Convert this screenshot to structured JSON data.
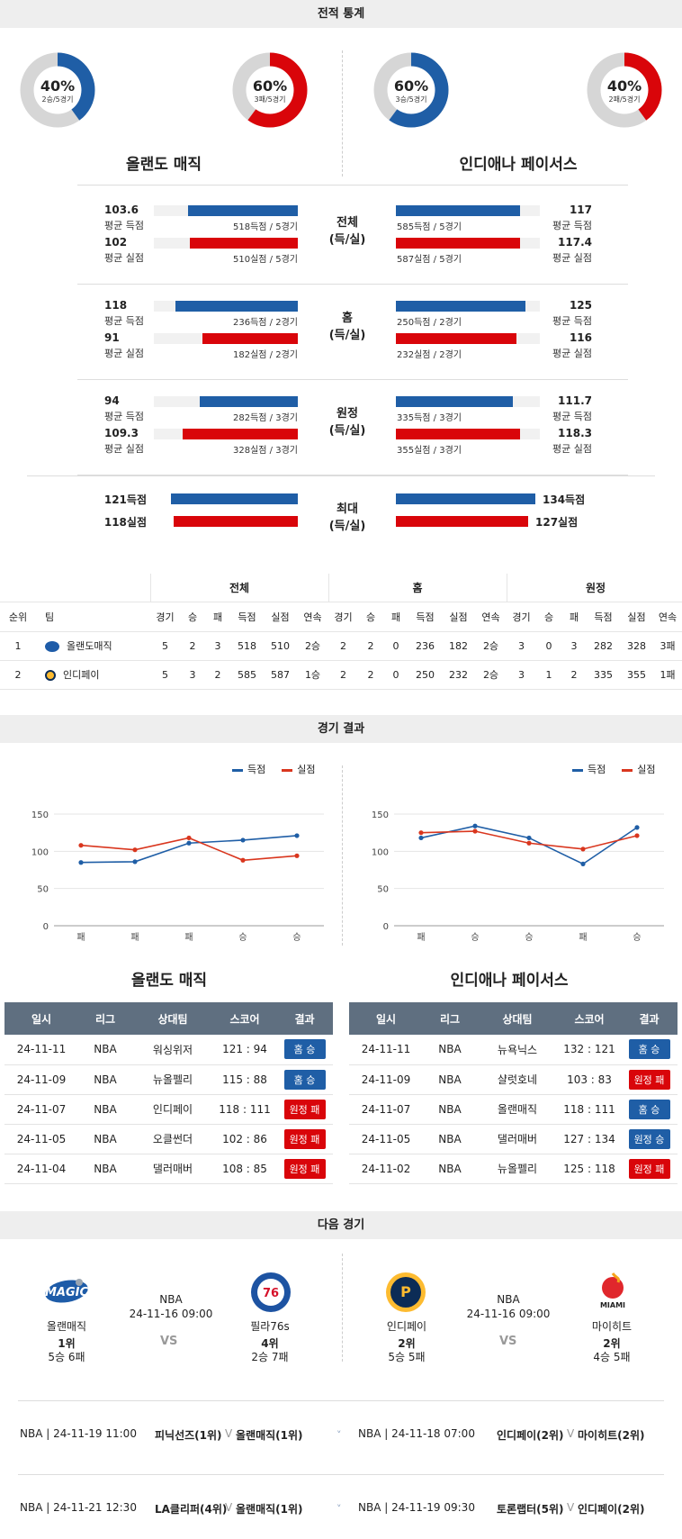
{
  "sections": {
    "stats_title": "전적 통계",
    "results_title": "경기 결과",
    "next_title": "다음 경기"
  },
  "donuts": [
    {
      "pct": "40%",
      "sub": "2승/5경기",
      "fraction": 0.4,
      "color": "#1f5ea6"
    },
    {
      "pct": "60%",
      "sub": "3패/5경기",
      "fraction": 0.6,
      "color": "#d9050a"
    },
    {
      "pct": "60%",
      "sub": "3승/5경기",
      "fraction": 0.6,
      "color": "#1f5ea6"
    },
    {
      "pct": "40%",
      "sub": "2패/5경기",
      "fraction": 0.4,
      "color": "#d9050a"
    }
  ],
  "teams": {
    "left": "올랜도 매직",
    "right": "인디애나 페이서스"
  },
  "stat_groups": [
    {
      "mid": [
        "전체",
        "(득/실)"
      ],
      "left": [
        {
          "val": "103.6",
          "lbl": "평균 득점",
          "note": "518득점 / 5경기",
          "fill": 0.76
        },
        {
          "val": "102",
          "lbl": "평균 실점",
          "note": "510실점 / 5경기",
          "fill": 0.75
        }
      ],
      "right": [
        {
          "val": "117",
          "lbl": "평균 득점",
          "note": "585득점 / 5경기",
          "fill": 0.86
        },
        {
          "val": "117.4",
          "lbl": "평균 실점",
          "note": "587실점 / 5경기",
          "fill": 0.86
        }
      ]
    },
    {
      "mid": [
        "홈",
        "(득/실)"
      ],
      "left": [
        {
          "val": "118",
          "lbl": "평균 득점",
          "note": "236득점 / 2경기",
          "fill": 0.85
        },
        {
          "val": "91",
          "lbl": "평균 실점",
          "note": "182실점 / 2경기",
          "fill": 0.66
        }
      ],
      "right": [
        {
          "val": "125",
          "lbl": "평균 득점",
          "note": "250득점 / 2경기",
          "fill": 0.9
        },
        {
          "val": "116",
          "lbl": "평균 실점",
          "note": "232실점 / 2경기",
          "fill": 0.84
        }
      ]
    },
    {
      "mid": [
        "원정",
        "(득/실)"
      ],
      "left": [
        {
          "val": "94",
          "lbl": "평균 득점",
          "note": "282득점 / 3경기",
          "fill": 0.68
        },
        {
          "val": "109.3",
          "lbl": "평균 실점",
          "note": "328실점 / 3경기",
          "fill": 0.8
        }
      ],
      "right": [
        {
          "val": "111.7",
          "lbl": "평균 득점",
          "note": "335득점 / 3경기",
          "fill": 0.81
        },
        {
          "val": "118.3",
          "lbl": "평균 실점",
          "note": "355실점 / 3경기",
          "fill": 0.86
        }
      ]
    }
  ],
  "max_group": {
    "mid": [
      "최대",
      "(득/실)"
    ],
    "left": [
      {
        "val": "121득점",
        "fill": 0.88
      },
      {
        "val": "118실점",
        "fill": 0.86
      }
    ],
    "right": [
      {
        "val": "134득점",
        "fill": 0.97
      },
      {
        "val": "127실점",
        "fill": 0.92
      }
    ]
  },
  "standings": {
    "groups": [
      "전체",
      "홈",
      "원정"
    ],
    "headers": [
      "순위",
      "팀",
      "경기",
      "승",
      "패",
      "득점",
      "실점",
      "연속",
      "경기",
      "승",
      "패",
      "득점",
      "실점",
      "연속",
      "경기",
      "승",
      "패",
      "득점",
      "실점",
      "연속"
    ],
    "rows": [
      {
        "icon": "magic-logo-icon",
        "cells": [
          "1",
          "올랜도매직",
          "5",
          "2",
          "3",
          "518",
          "510",
          "2승",
          "2",
          "2",
          "0",
          "236",
          "182",
          "2승",
          "3",
          "0",
          "3",
          "282",
          "328",
          "3패"
        ]
      },
      {
        "icon": "pacers-logo-icon",
        "cells": [
          "2",
          "인디페이",
          "5",
          "3",
          "2",
          "585",
          "587",
          "1승",
          "2",
          "2",
          "0",
          "250",
          "232",
          "2승",
          "3",
          "1",
          "2",
          "335",
          "355",
          "1패"
        ]
      }
    ]
  },
  "legend": {
    "scored": "득점",
    "allowed": "실점",
    "scored_color": "#1f5ea6",
    "allowed_color": "#d9361e"
  },
  "chart_data": [
    {
      "type": "line",
      "categories": [
        "패",
        "패",
        "패",
        "승",
        "승"
      ],
      "series": [
        {
          "name": "득점",
          "values": [
            85,
            86,
            111,
            115,
            121
          ]
        },
        {
          "name": "실점",
          "values": [
            108,
            102,
            118,
            88,
            94
          ]
        }
      ],
      "yticks": [
        "150",
        "100",
        "50",
        "0"
      ],
      "ylim": [
        0,
        150
      ],
      "grid": true,
      "legend": "top-right"
    },
    {
      "type": "line",
      "categories": [
        "패",
        "승",
        "승",
        "패",
        "승"
      ],
      "series": [
        {
          "name": "득점",
          "values": [
            118,
            134,
            118,
            83,
            132
          ]
        },
        {
          "name": "실점",
          "values": [
            125,
            127,
            111,
            103,
            121
          ]
        }
      ],
      "yticks": [
        "150",
        "100",
        "50",
        "0"
      ],
      "ylim": [
        0,
        150
      ],
      "grid": true,
      "legend": "top-right"
    }
  ],
  "results": {
    "headers": [
      "일시",
      "리그",
      "상대팀",
      "스코어",
      "결과"
    ],
    "left": [
      [
        "24-11-11",
        "NBA",
        "워싱위저",
        "121 : 94",
        "홈 승",
        "blue"
      ],
      [
        "24-11-09",
        "NBA",
        "뉴올펠리",
        "115 : 88",
        "홈 승",
        "blue"
      ],
      [
        "24-11-07",
        "NBA",
        "인디페이",
        "118 : 111",
        "원정 패",
        "red"
      ],
      [
        "24-11-05",
        "NBA",
        "오클썬더",
        "102 : 86",
        "원정 패",
        "red"
      ],
      [
        "24-11-04",
        "NBA",
        "댈러매버",
        "108 : 85",
        "원정 패",
        "red"
      ]
    ],
    "right": [
      [
        "24-11-11",
        "NBA",
        "뉴욕닉스",
        "132 : 121",
        "홈 승",
        "blue"
      ],
      [
        "24-11-09",
        "NBA",
        "샬럿호네",
        "103 : 83",
        "원정 패",
        "red"
      ],
      [
        "24-11-07",
        "NBA",
        "올랜매직",
        "118 : 111",
        "홈 승",
        "blue"
      ],
      [
        "24-11-05",
        "NBA",
        "댈러매버",
        "127 : 134",
        "원정 승",
        "blue"
      ],
      [
        "24-11-02",
        "NBA",
        "뉴올펠리",
        "125 : 118",
        "원정 패",
        "red"
      ]
    ]
  },
  "next_games": [
    {
      "league": "NBA",
      "date": "24-11-16 09:00",
      "vs": "VS",
      "home": {
        "name": "올랜매직",
        "rank": "1위",
        "record": "5승 6패"
      },
      "away": {
        "name": "필라76s",
        "rank": "4위",
        "record": "2승 7패"
      }
    },
    {
      "league": "NBA",
      "date": "24-11-16 09:00",
      "vs": "VS",
      "home": {
        "name": "인디페이",
        "rank": "2위",
        "record": "5승 5패"
      },
      "away": {
        "name": "마이히트",
        "rank": "2위",
        "record": "4승 5패"
      }
    }
  ],
  "schedule": [
    {
      "left_date": "NBA | 24-11-19 11:00",
      "left_a": "피닉선즈(1위)",
      "left_b": "올랜매직(1위)",
      "right_date": "NBA | 24-11-18 07:00",
      "right_a": "인디페이(2위)",
      "right_b": "마이히트(2위)"
    },
    {
      "left_date": "NBA | 24-11-21 12:30",
      "left_a": "LA클리퍼(4위)",
      "left_b": "올랜매직(1위)",
      "right_date": "NBA | 24-11-19 09:30",
      "right_a": "토론랩터(5위)",
      "right_b": "인디페이(2위)"
    }
  ],
  "sched_sep": "V"
}
